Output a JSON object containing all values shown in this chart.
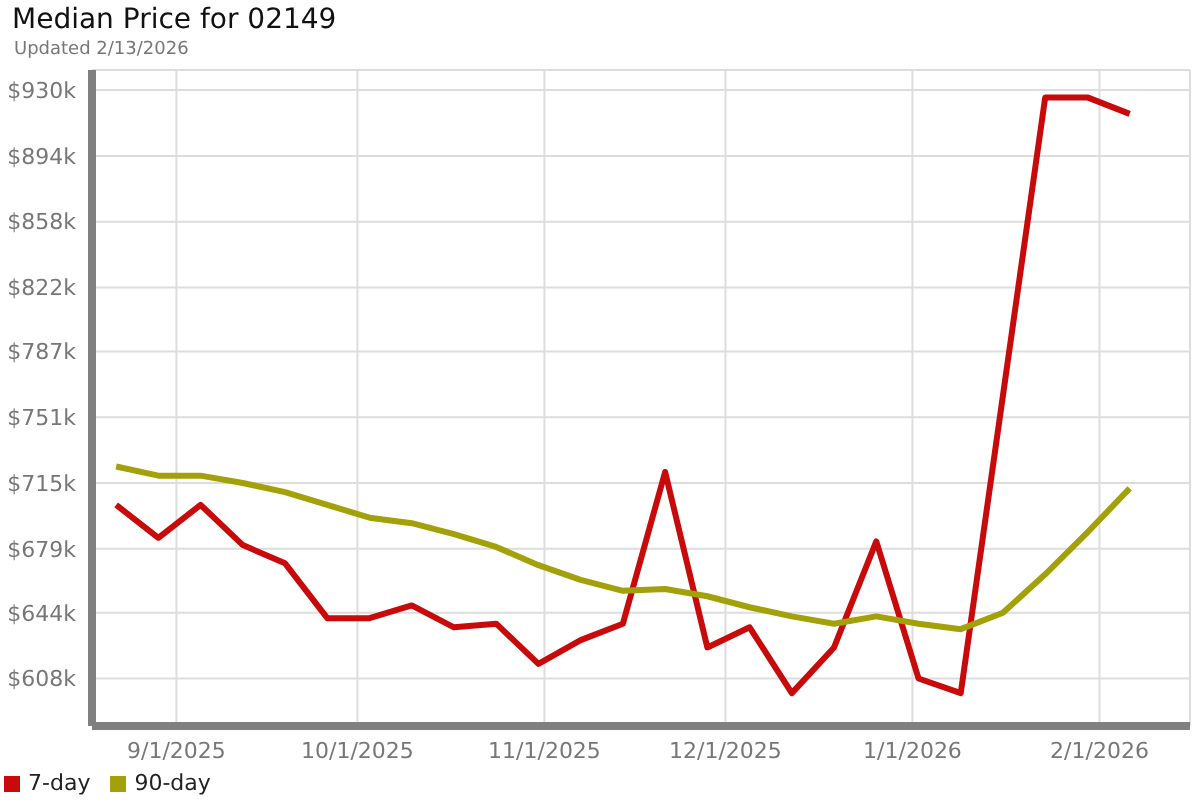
{
  "chart_data": {
    "type": "line",
    "title": "Median Price for 02149",
    "subtitle": "Updated 2/13/2026",
    "x": [
      "2025-08-22",
      "2025-08-29",
      "2025-09-05",
      "2025-09-12",
      "2025-09-19",
      "2025-09-26",
      "2025-10-03",
      "2025-10-10",
      "2025-10-17",
      "2025-10-24",
      "2025-10-31",
      "2025-11-07",
      "2025-11-14",
      "2025-11-21",
      "2025-11-28",
      "2025-12-05",
      "2025-12-12",
      "2025-12-19",
      "2025-12-26",
      "2026-01-02",
      "2026-01-09",
      "2026-01-16",
      "2026-01-23",
      "2026-01-30",
      "2026-02-06"
    ],
    "series": [
      {
        "name": "7-day",
        "color": "#c80a0a",
        "values": [
          703,
          685,
          703,
          681,
          671,
          641,
          641,
          648,
          636,
          638,
          616,
          629,
          638,
          721,
          625,
          636,
          600,
          625,
          683,
          608,
          600,
          763,
          926,
          926,
          917
        ]
      },
      {
        "name": "90-day",
        "color": "#a3a10a",
        "values": [
          724,
          719,
          719,
          715,
          710,
          703,
          696,
          693,
          687,
          680,
          670,
          662,
          656,
          657,
          653,
          647,
          642,
          638,
          642,
          638,
          635,
          644,
          665,
          688,
          712
        ]
      }
    ],
    "xlim": [
      "2025-08-18",
      "2026-02-16"
    ],
    "xticks": [
      {
        "value": "2025-09-01",
        "label": "9/1/2025"
      },
      {
        "value": "2025-10-01",
        "label": "10/1/2025"
      },
      {
        "value": "2025-11-01",
        "label": "11/1/2025"
      },
      {
        "value": "2025-12-01",
        "label": "12/1/2025"
      },
      {
        "value": "2026-01-01",
        "label": "1/1/2026"
      },
      {
        "value": "2026-02-01",
        "label": "2/1/2026"
      }
    ],
    "ylim": [
      582,
      941
    ],
    "yticks": [
      {
        "value": 608,
        "label": "$608k"
      },
      {
        "value": 644,
        "label": "$644k"
      },
      {
        "value": 679,
        "label": "$679k"
      },
      {
        "value": 715,
        "label": "$715k"
      },
      {
        "value": 751,
        "label": "$751k"
      },
      {
        "value": 787,
        "label": "$787k"
      },
      {
        "value": 822,
        "label": "$822k"
      },
      {
        "value": 858,
        "label": "$858k"
      },
      {
        "value": 894,
        "label": "$894k"
      },
      {
        "value": 930,
        "label": "$930k"
      }
    ],
    "grid": true,
    "legend": "bottom left",
    "marker": "none",
    "line_style": "solid"
  }
}
